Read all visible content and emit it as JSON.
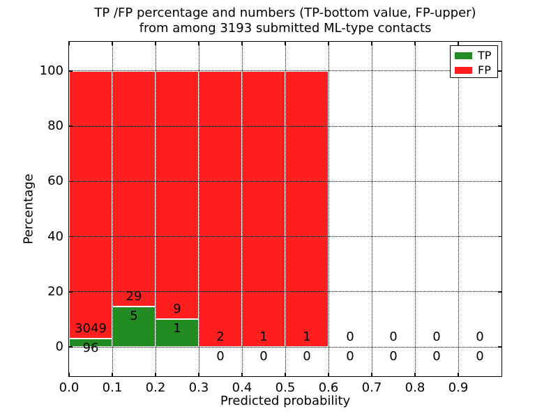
{
  "chart_data": {
    "type": "bar",
    "stacked": true,
    "title_line1": "TP /FP percentage and numbers (TP-bottom value, FP-upper)",
    "title_line2": "from among 3193 submitted ML-type contacts",
    "xlabel": "Predicted probability",
    "ylabel": "Percentage",
    "xlim": [
      0.0,
      1.0
    ],
    "ylim": [
      -10.6,
      110.6
    ],
    "grid": true,
    "legend_position": "upper-right",
    "legend": [
      {
        "label": "TP",
        "color": "#228b22"
      },
      {
        "label": "FP",
        "color": "#ff1f1f"
      }
    ],
    "x_tick_values": [
      0.0,
      0.1,
      0.2,
      0.3,
      0.4,
      0.5,
      0.6,
      0.7,
      0.8,
      0.9
    ],
    "x_tick_labels": [
      "0.0",
      "0.1",
      "0.2",
      "0.3",
      "0.4",
      "0.5",
      "0.6",
      "0.7",
      "0.8",
      "0.9"
    ],
    "y_tick_values": [
      0,
      20,
      40,
      60,
      80,
      100
    ],
    "y_tick_labels": [
      "0",
      "20",
      "40",
      "60",
      "80",
      "100"
    ],
    "bin_width": 0.1,
    "bins": [
      {
        "x0": 0.0,
        "tp": 96,
        "fp": 3049,
        "tp_pct": 3.05,
        "fp_pct": 96.95
      },
      {
        "x0": 0.1,
        "tp": 5,
        "fp": 29,
        "tp_pct": 14.71,
        "fp_pct": 85.29
      },
      {
        "x0": 0.2,
        "tp": 1,
        "fp": 9,
        "tp_pct": 10.0,
        "fp_pct": 90.0
      },
      {
        "x0": 0.3,
        "tp": 0,
        "fp": 2,
        "tp_pct": 0,
        "fp_pct": 100
      },
      {
        "x0": 0.4,
        "tp": 0,
        "fp": 1,
        "tp_pct": 0,
        "fp_pct": 100
      },
      {
        "x0": 0.5,
        "tp": 0,
        "fp": 1,
        "tp_pct": 0,
        "fp_pct": 100
      },
      {
        "x0": 0.6,
        "tp": 0,
        "fp": 0,
        "tp_pct": 0,
        "fp_pct": 0
      },
      {
        "x0": 0.7,
        "tp": 0,
        "fp": 0,
        "tp_pct": 0,
        "fp_pct": 0
      },
      {
        "x0": 0.8,
        "tp": 0,
        "fp": 0,
        "tp_pct": 0,
        "fp_pct": 0
      },
      {
        "x0": 0.9,
        "tp": 0,
        "fp": 0,
        "tp_pct": 0,
        "fp_pct": 0
      }
    ],
    "colors": {
      "tp": "#228b22",
      "fp": "#ff1f1f",
      "grid": "#000000",
      "frame": "#000000",
      "bar_edge": "#ffffff",
      "background": "#ffffff"
    }
  }
}
